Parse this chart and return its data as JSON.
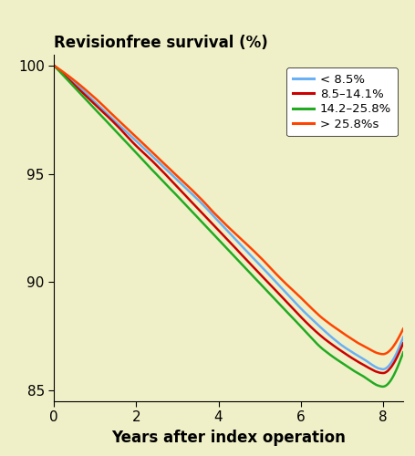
{
  "title": "Revisionfree survival (%)",
  "xlabel": "Years after index operation",
  "xlim": [
    0,
    8.5
  ],
  "ylim": [
    84.5,
    100.5
  ],
  "yticks": [
    85,
    90,
    95,
    100
  ],
  "xticks": [
    0,
    2,
    4,
    6,
    8
  ],
  "bg_color": "#f0f0c8",
  "legend_labels": [
    "< 8.5%",
    "8.5–14.1%",
    "14.2–25.8%",
    "> 25.8%s"
  ],
  "legend_colors": [
    "#6ab0f5",
    "#cc0000",
    "#22aa22",
    "#ff4400"
  ],
  "line_colors": [
    "#6ab0f5",
    "#cc0000",
    "#22aa22",
    "#ff4400"
  ],
  "curve_x": [
    0,
    0.5,
    1.0,
    1.5,
    2.0,
    2.5,
    3.0,
    3.5,
    4.0,
    4.5,
    5.0,
    5.5,
    6.0,
    6.5,
    7.0,
    7.5,
    8.0,
    8.5
  ],
  "curve_blue": [
    100,
    99.2,
    98.3,
    97.4,
    96.5,
    95.6,
    94.7,
    93.8,
    92.8,
    91.8,
    90.8,
    89.8,
    88.8,
    87.9,
    87.1,
    86.5,
    86.0,
    87.5
  ],
  "curve_red": [
    100,
    99.1,
    98.2,
    97.3,
    96.3,
    95.4,
    94.4,
    93.4,
    92.4,
    91.4,
    90.4,
    89.4,
    88.4,
    87.5,
    86.8,
    86.2,
    85.8,
    87.2
  ],
  "curve_green": [
    100,
    99.0,
    98.0,
    97.0,
    96.0,
    95.0,
    94.0,
    93.0,
    92.0,
    91.0,
    90.0,
    89.0,
    88.0,
    87.0,
    86.3,
    85.7,
    85.2,
    86.8
  ],
  "curve_orange": [
    100,
    99.3,
    98.5,
    97.6,
    96.7,
    95.8,
    94.9,
    94.0,
    93.0,
    92.1,
    91.2,
    90.2,
    89.3,
    88.4,
    87.7,
    87.1,
    86.7,
    87.9
  ]
}
